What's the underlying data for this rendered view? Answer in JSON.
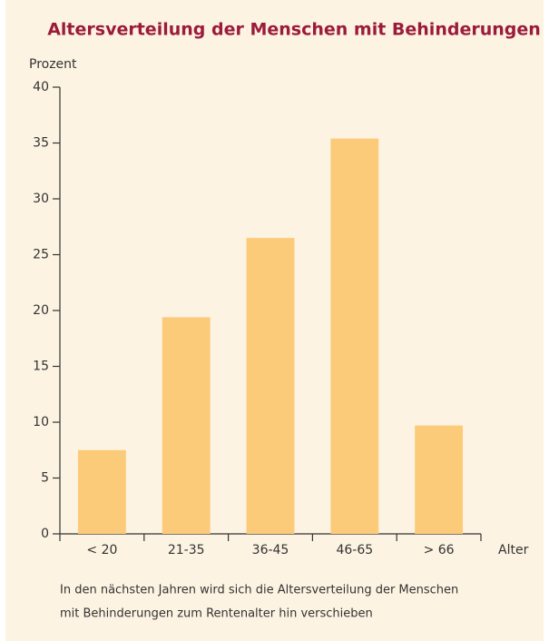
{
  "chart_data": {
    "type": "bar",
    "title": "Altersverteilung der Menschen mit Behinderungen",
    "y_label": "Prozent",
    "x_label": "Alter",
    "categories": [
      "< 20",
      "21-35",
      "36-45",
      "46-65",
      "> 66"
    ],
    "values": [
      7.5,
      19.4,
      26.5,
      35.4,
      9.7
    ],
    "color": "#fccb7a",
    "ylim": [
      0,
      40
    ],
    "yticks": [
      0,
      5,
      10,
      15,
      20,
      25,
      30,
      35,
      40
    ],
    "grid": false,
    "caption": [
      "In den nächsten Jahren wird sich die Altersverteilung der Menschen",
      "mit Behinderungen zum Rentenalter hin verschieben"
    ]
  }
}
